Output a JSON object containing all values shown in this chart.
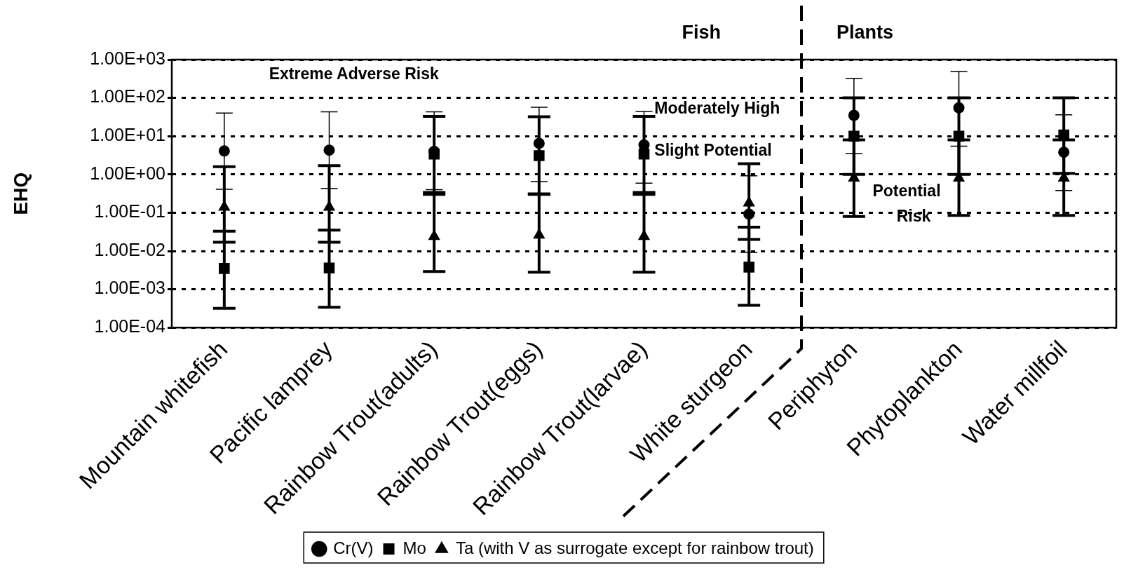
{
  "chart_data": {
    "type": "scatter",
    "ylabel": "EHQ",
    "categories": [
      "Mountain whitefish",
      "Pacific lamprey",
      "Rainbow Trout(adults)",
      "Rainbow Trout(eggs)",
      "Rainbow Trout(larvae)",
      "White sturgeon",
      "Periphyton",
      "Phytoplankton",
      "Water millfoil"
    ],
    "series": [
      {
        "name": "Cr(V)",
        "color": "#000000",
        "marker": "circle",
        "values": [
          4.1,
          4.3,
          4.0,
          6.5,
          5.9,
          0.092,
          35,
          55,
          3.8
        ],
        "errors": [
          [
            0.41,
            40
          ],
          [
            0.43,
            43
          ],
          [
            0.4,
            43
          ],
          [
            0.65,
            57
          ],
          [
            0.59,
            44
          ],
          [
            0.0092,
            0.92
          ],
          [
            3.5,
            325
          ],
          [
            5.5,
            490
          ],
          [
            0.38,
            36
          ]
        ]
      },
      {
        "name": "Mo",
        "color": "#000000",
        "marker": "square",
        "values": [
          0.0035,
          0.0036,
          3.4,
          3.1,
          3.4,
          0.0038,
          10,
          10,
          10.7
        ],
        "errors": [
          [
            0.00032,
            0.033
          ],
          [
            0.00034,
            0.035
          ],
          [
            0.34,
            33
          ],
          [
            0.31,
            32
          ],
          [
            0.34,
            33
          ],
          [
            0.00038,
            0.042
          ],
          [
            1,
            100
          ],
          [
            1,
            100
          ],
          [
            1.07,
            100
          ]
        ]
      },
      {
        "name": "Ta (with V as surrogate except for rainbow trout)",
        "color": "#000000",
        "marker": "triangle",
        "values": [
          0.14,
          0.14,
          0.024,
          0.026,
          0.024,
          0.18,
          0.8,
          0.8,
          0.8
        ],
        "errors": [
          [
            0.017,
            1.6
          ],
          [
            0.017,
            1.7
          ],
          [
            0.0029,
            0.3
          ],
          [
            0.0028,
            0.3
          ],
          [
            0.0028,
            0.3
          ],
          [
            0.02,
            1.9
          ],
          [
            0.08,
            8
          ],
          [
            0.085,
            8
          ],
          [
            0.085,
            8
          ]
        ]
      }
    ],
    "log": "y",
    "ylim": [
      0.0001,
      1000
    ],
    "yticks": [
      {
        "value": 0.0001,
        "label": "1.00E-04"
      },
      {
        "value": 0.001,
        "label": "1.00E-03"
      },
      {
        "value": 0.01,
        "label": "1.00E-02"
      },
      {
        "value": 0.1,
        "label": "1.00E-01"
      },
      {
        "value": 1,
        "label": "1.00E+00"
      },
      {
        "value": 10,
        "label": "1.00E+01"
      },
      {
        "value": 100,
        "label": "1.00E+02"
      },
      {
        "value": 1000,
        "label": "1.00E+03"
      }
    ],
    "grid": "y",
    "line_style": "dotted",
    "legend": "bottom",
    "annotations": [
      "Extreme Adverse Risk",
      "Moderately High",
      "Slight Potential",
      "Potential\nRisk",
      "Fish",
      "Plants"
    ]
  }
}
